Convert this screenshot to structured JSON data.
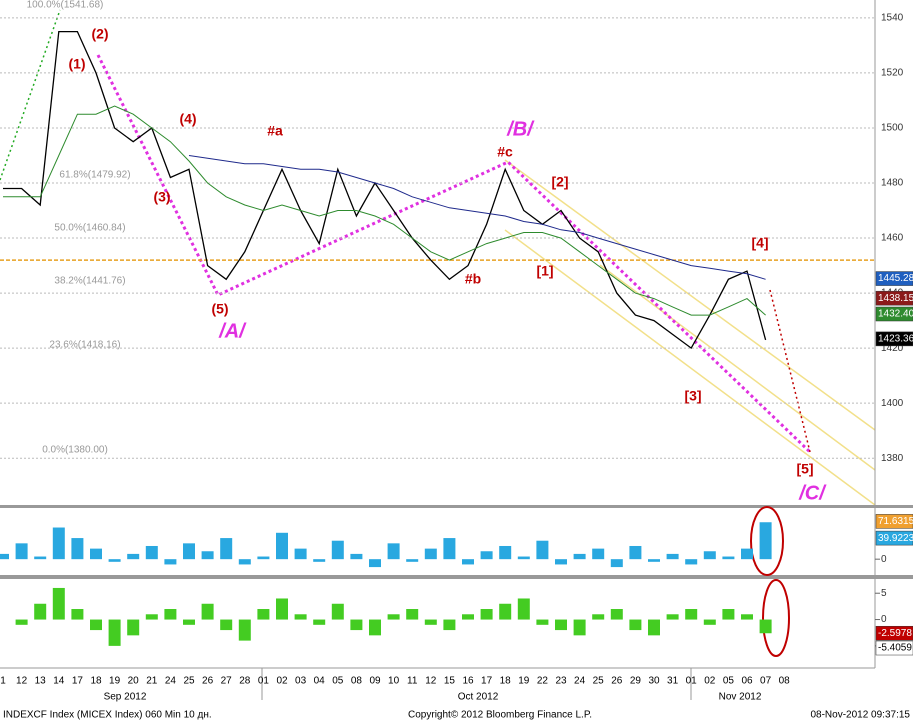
{
  "chart_data": [
    {
      "type": "line",
      "categories": [
        "1",
        "12",
        "13",
        "14",
        "17",
        "18",
        "19",
        "20",
        "21",
        "24",
        "25",
        "26",
        "27",
        "28",
        "01",
        "02",
        "03",
        "04",
        "05",
        "08",
        "09",
        "10",
        "11",
        "12",
        "15",
        "16",
        "17",
        "18",
        "19",
        "22",
        "23",
        "24",
        "25",
        "26",
        "29",
        "30",
        "31",
        "01",
        "02",
        "05",
        "06",
        "07",
        "08"
      ],
      "months": [
        "Sep 2012",
        "Oct 2012",
        "Nov 2012"
      ],
      "series": [
        {
          "color": "#000000",
          "values": [
            1478,
            1478,
            1472,
            1535,
            1535,
            1520,
            1500,
            1495,
            1500,
            1482,
            1485,
            1450,
            1445,
            1455,
            1470,
            1485,
            1470,
            1458,
            1485,
            1468,
            1480,
            1470,
            1460,
            1452,
            1445,
            1450,
            1465,
            1485,
            1470,
            1465,
            1470,
            1460,
            1455,
            1440,
            1432,
            1430,
            1425,
            1420,
            1432,
            1445,
            1448,
            1423,
            null
          ]
        },
        {
          "color": "#1f2a8c",
          "values": [
            null,
            null,
            null,
            null,
            null,
            null,
            null,
            null,
            null,
            null,
            1490,
            1489,
            1488,
            1487,
            1487,
            1486,
            1485,
            1485,
            1484,
            1482,
            1480,
            1478,
            1475,
            1473,
            1471,
            1470,
            1469,
            1468,
            1466,
            1465,
            1463,
            1462,
            1460,
            1458,
            1456,
            1454,
            1452,
            1450,
            1449,
            1448,
            1447,
            1445,
            null
          ]
        },
        {
          "color": "#2e8b2e",
          "values": [
            1475,
            1475,
            1475,
            1490,
            1505,
            1505,
            1508,
            1505,
            1500,
            1495,
            1488,
            1480,
            1475,
            1472,
            1470,
            1472,
            1470,
            1468,
            1470,
            1470,
            1468,
            1465,
            1460,
            1455,
            1452,
            1455,
            1458,
            1460,
            1462,
            1462,
            1460,
            1455,
            1450,
            1445,
            1440,
            1438,
            1435,
            1432,
            1432,
            1435,
            1438,
            1432,
            null
          ]
        }
      ],
      "ylim": [
        1363,
        1546.5
      ],
      "yticks": [
        1380,
        1400,
        1420,
        1440,
        1460,
        1480,
        1500,
        1520,
        1540
      ],
      "grid": true,
      "level_line": {
        "value": 1452,
        "color": "#e8a020"
      },
      "last_labels": [
        {
          "value": 1445.28,
          "label": "1445.28",
          "color": "#1f5fbf"
        },
        {
          "value": 1438.15,
          "label": "1438.15",
          "color": "#8b1a1a"
        },
        {
          "value": 1432.4,
          "label": "1432.40",
          "color": "#2e8b2e"
        },
        {
          "value": 1423.36,
          "label": "1423.36",
          "color": "#000000"
        }
      ],
      "fib_labels": [
        "100.0%(1541.68)",
        "61.8%(1479.92)",
        "50.0%(1460.84)",
        "38.2%(1441.76)",
        "23.6%(1418.16)",
        "0.0%(1380.00)"
      ],
      "annotations": [
        {
          "text": "(1)",
          "color": "#c00000"
        },
        {
          "text": "(2)",
          "color": "#c00000"
        },
        {
          "text": "(3)",
          "color": "#c00000"
        },
        {
          "text": "(4)",
          "color": "#c00000"
        },
        {
          "text": "(5)",
          "color": "#c00000"
        },
        {
          "text": "/A/",
          "color": "#e030e0"
        },
        {
          "text": "#a",
          "color": "#c00000"
        },
        {
          "text": "#b",
          "color": "#c00000"
        },
        {
          "text": "#c",
          "color": "#c00000"
        },
        {
          "text": "/B/",
          "color": "#e030e0"
        },
        {
          "text": "[1]",
          "color": "#c00000"
        },
        {
          "text": "[2]",
          "color": "#c00000"
        },
        {
          "text": "[3]",
          "color": "#c00000"
        },
        {
          "text": "[4]",
          "color": "#c00000"
        },
        {
          "text": "[5]",
          "color": "#c00000"
        },
        {
          "text": "/C/",
          "color": "#e030e0"
        }
      ],
      "footer": {
        "left": "INDEXCF Index (MICEX Index) 060 Min 10 дн.",
        "center": "Copyright© 2012 Bloomberg Finance L.P.",
        "right": "08-Nov-2012 09:37:15"
      }
    },
    {
      "type": "bar",
      "color": "#29a8e0",
      "values": [
        10,
        30,
        5,
        60,
        40,
        20,
        -5,
        10,
        25,
        -10,
        30,
        15,
        40,
        -10,
        5,
        50,
        20,
        -5,
        35,
        10,
        -15,
        30,
        -5,
        20,
        40,
        -10,
        15,
        25,
        5,
        35,
        -10,
        10,
        20,
        -15,
        25,
        -5,
        10,
        -10,
        15,
        5,
        20,
        70,
        null
      ],
      "ylim": [
        -30,
        97
      ],
      "yticks": [
        0
      ],
      "last_labels": [
        {
          "value": 71.6315,
          "label": "71.6315",
          "color": "#f0a030"
        },
        {
          "value": 39.9223,
          "label": "39.9223",
          "color": "#29a8e0"
        }
      ]
    },
    {
      "type": "bar",
      "color": "#44cc22",
      "values": [
        0,
        -1,
        3,
        6,
        2,
        -2,
        -5,
        -3,
        1,
        2,
        -1,
        3,
        -2,
        -4,
        2,
        4,
        1,
        -1,
        3,
        -2,
        -3,
        1,
        2,
        -1,
        -2,
        1,
        2,
        3,
        4,
        -1,
        -2,
        -3,
        1,
        2,
        -2,
        -3,
        1,
        2,
        -1,
        2,
        1,
        -2.6,
        null
      ],
      "ylim": [
        -9.2,
        7.7
      ],
      "yticks": [
        5,
        0,
        -5
      ],
      "last_labels": [
        {
          "value": -2.5978,
          "label": "-2.5978",
          "color": "#c00000"
        },
        {
          "value": -5.4059,
          "label": "-5.4059",
          "color": "#ffffff"
        }
      ]
    }
  ]
}
